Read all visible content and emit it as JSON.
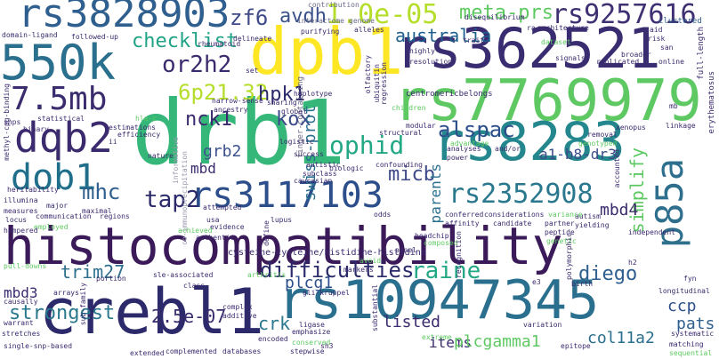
{
  "words": [
    {
      "text": "histocompatibility",
      "color": "#3b1a5a"
    },
    {
      "text": "drb1",
      "color": "#35b779"
    },
    {
      "text": "rs10947345",
      "color": "#2a6f8e"
    },
    {
      "text": "crebl1",
      "color": "#2c2a6b"
    },
    {
      "text": "rs3828903",
      "color": "#2f5f8e"
    },
    {
      "text": "rs362521",
      "color": "#3a2c70"
    },
    {
      "text": "rs7769979",
      "color": "#5ec962"
    },
    {
      "text": "rs8283",
      "color": "#24878e"
    },
    {
      "text": "dpb1",
      "color": "#fde725"
    },
    {
      "text": "550k",
      "color": "#2a6f8e"
    },
    {
      "text": "dqb2",
      "color": "#3b2a6e"
    },
    {
      "text": "dob1",
      "color": "#1f6f8b"
    },
    {
      "text": "7.5mb",
      "color": "#3b2c6e"
    },
    {
      "text": "rs3117103",
      "color": "#2c4f8b"
    },
    {
      "text": "rs2352908",
      "color": "#2a788e"
    },
    {
      "text": "p85a",
      "color": "#2f6f8e"
    },
    {
      "text": "1.0e-05",
      "color": "#b5de2b"
    },
    {
      "text": "meta-prs",
      "color": "#5ec962"
    },
    {
      "text": "rs9257616",
      "color": "#3f2f73"
    },
    {
      "text": "zf6",
      "color": "#3e4a89"
    },
    {
      "text": "avdh",
      "color": "#3b518b"
    },
    {
      "text": "or2h2",
      "color": "#3b2a6e"
    },
    {
      "text": "6p21.32",
      "color": "#b5de2b"
    },
    {
      "text": "hpk1",
      "color": "#2b2a6b"
    },
    {
      "text": "checklist",
      "color": "#20a386"
    },
    {
      "text": "australia",
      "color": "#1f5f8e"
    },
    {
      "text": "nck1",
      "color": "#3b2a6e"
    },
    {
      "text": "kox",
      "color": "#3b4a89"
    },
    {
      "text": "ophid",
      "color": "#22a884"
    },
    {
      "text": "alspac",
      "color": "#2c4f8b"
    },
    {
      "text": "a1-b8-dr3",
      "color": "#3b4a89"
    },
    {
      "text": "swiss-prot",
      "color": "#2a6f8e"
    },
    {
      "text": "micb",
      "color": "#3e4a89"
    },
    {
      "text": "mhc",
      "color": "#2f5f8e"
    },
    {
      "text": "grb2",
      "color": "#3b518b"
    },
    {
      "text": "tap2",
      "color": "#2b2a6b"
    },
    {
      "text": "mbd",
      "color": "#3b2a6e"
    },
    {
      "text": "parents",
      "color": "#2a6f8e"
    },
    {
      "text": "simplify",
      "color": "#5ec962"
    },
    {
      "text": "mbd4",
      "color": "#3b2a6e"
    },
    {
      "text": "raine",
      "color": "#22a884"
    },
    {
      "text": "diego",
      "color": "#2f5f8e"
    },
    {
      "text": "difficulties",
      "color": "#2b2a6b"
    },
    {
      "text": "plcg1",
      "color": "#2c4f8b"
    },
    {
      "text": "trim27",
      "color": "#2f6f8e"
    },
    {
      "text": "strongest",
      "color": "#2a788e"
    },
    {
      "text": "mbd3",
      "color": "#3b2a6e"
    },
    {
      "text": "2.5e-07",
      "color": "#3b2c6e"
    },
    {
      "text": "crk",
      "color": "#2a788e"
    },
    {
      "text": "items",
      "color": "#3b2a6e"
    },
    {
      "text": "listed",
      "color": "#3b2a6e"
    },
    {
      "text": "plcgamma1",
      "color": "#5ec962"
    },
    {
      "text": "col11a2",
      "color": "#2a6f8e"
    },
    {
      "text": "ccp",
      "color": "#2c4f8b"
    },
    {
      "text": "pats",
      "color": "#2f5f8e"
    },
    {
      "text": "australia",
      "color": "#1f5f8e"
    },
    {
      "text": "swiss-prot",
      "color": "#2a6f8e"
    },
    {
      "text": "informative",
      "color": "#9a9ab0"
    },
    {
      "text": "co-immunoprecipitation",
      "color": "#9a9ab0"
    },
    {
      "text": "cysteine-cysteine/histidine-histidine",
      "color": "#3b2a6e"
    },
    {
      "text": "finger-containing",
      "color": "#6a6a8a"
    },
    {
      "text": "centromericbelongs",
      "color": "#3b2a6e"
    },
    {
      "text": "interactome",
      "color": "#6a6a8a"
    },
    {
      "text": "genome",
      "color": "#6a6a8a"
    },
    {
      "text": "contribution",
      "color": "#6a6a8a"
    },
    {
      "text": "disequilibrium",
      "color": "#3b2a6e"
    },
    {
      "text": "domain-ligand",
      "color": "#3b2a6e"
    },
    {
      "text": "methyl-cpg-binding",
      "color": "#3b2a6e"
    },
    {
      "text": "followed-up",
      "color": "#3b2a6e"
    },
    {
      "text": "delineate",
      "color": "#3b2a6e"
    },
    {
      "text": "rheumatoid",
      "color": "#3b2a6e"
    },
    {
      "text": "purifying",
      "color": "#3b2a6e"
    },
    {
      "text": "alleles",
      "color": "#3b2a6e"
    },
    {
      "text": "resolution",
      "color": "#3b2a6e"
    },
    {
      "text": "highly",
      "color": "#3b2a6e"
    },
    {
      "text": "trait",
      "color": "#3b2a6e"
    },
    {
      "text": "architecture",
      "color": "#3b2a6e"
    },
    {
      "text": "clustered",
      "color": "#2f5f8e"
    },
    {
      "text": "full-length",
      "color": "#3b2a6e"
    },
    {
      "text": "erythematosus",
      "color": "#3b2a6e"
    },
    {
      "text": "dataset",
      "color": "#5ec962"
    },
    {
      "text": "replicated",
      "color": "#3b2a6e"
    },
    {
      "text": "online",
      "color": "#3b2a6e"
    },
    {
      "text": "risk",
      "color": "#3b2a6e"
    },
    {
      "text": "aid",
      "color": "#3b2a6e"
    },
    {
      "text": "san",
      "color": "#3b2a6e"
    },
    {
      "text": "broader",
      "color": "#3b2a6e"
    },
    {
      "text": "signals",
      "color": "#3b2a6e"
    },
    {
      "text": "ra",
      "color": "#3b2a6e"
    },
    {
      "text": "haplotype",
      "color": "#3b2a6e"
    },
    {
      "text": "set",
      "color": "#3b2a6e"
    },
    {
      "text": "olfactory",
      "color": "#3b2a6e"
    },
    {
      "text": "ubiquitin",
      "color": "#3b2a6e"
    },
    {
      "text": "regression",
      "color": "#3b2a6e"
    },
    {
      "text": "children",
      "color": "#5ec962"
    },
    {
      "text": "narrow-sense",
      "color": "#3b2a6e"
    },
    {
      "text": "sharing",
      "color": "#3b2a6e"
    },
    {
      "text": "ancestry",
      "color": "#3b2a6e"
    },
    {
      "text": "global",
      "color": "#3b2a6e"
    },
    {
      "text": "estimations",
      "color": "#3b2a6e"
    },
    {
      "text": "statistical",
      "color": "#3b2a6e"
    },
    {
      "text": "binary",
      "color": "#3b2a6e"
    },
    {
      "text": "snps",
      "color": "#3b2a6e"
    },
    {
      "text": "ii",
      "color": "#3b2a6e"
    },
    {
      "text": "hla-c",
      "color": "#5ec962"
    },
    {
      "text": "efficiency",
      "color": "#3b2a6e"
    },
    {
      "text": "linkage",
      "color": "#3b2a6e"
    },
    {
      "text": "xenopus",
      "color": "#3b2a6e"
    },
    {
      "text": "removal",
      "color": "#3b2a6e"
    },
    {
      "text": "mb",
      "color": "#3b2a6e"
    },
    {
      "text": "genotyped",
      "color": "#5ec962"
    },
    {
      "text": "advantage",
      "color": "#5ec962"
    },
    {
      "text": "modular",
      "color": "#3b2a6e"
    },
    {
      "text": "structural",
      "color": "#3b2a6e"
    },
    {
      "text": "logistic",
      "color": "#3b2a6e"
    },
    {
      "text": "nature",
      "color": "#3b2a6e"
    },
    {
      "text": "success",
      "color": "#3b2a6e"
    },
    {
      "text": "biologic",
      "color": "#3b2a6e"
    },
    {
      "text": "autistic",
      "color": "#3b2a6e"
    },
    {
      "text": "subclass",
      "color": "#3b2a6e"
    },
    {
      "text": "caucasian",
      "color": "#3b2a6e"
    },
    {
      "text": "confounding",
      "color": "#3b2a6e"
    },
    {
      "text": "analyses",
      "color": "#3b2a6e"
    },
    {
      "text": "power",
      "color": "#3b2a6e"
    },
    {
      "text": "and/or",
      "color": "#3b2a6e"
    },
    {
      "text": "accounted",
      "color": "#3b2a6e"
    },
    {
      "text": "autism",
      "color": "#3b2a6e"
    },
    {
      "text": "yielding",
      "color": "#3b2a6e"
    },
    {
      "text": "independent",
      "color": "#3b2a6e"
    },
    {
      "text": "heritability",
      "color": "#3b2a6e"
    },
    {
      "text": "illumina",
      "color": "#3b2a6e"
    },
    {
      "text": "major",
      "color": "#3b2a6e"
    },
    {
      "text": "measures",
      "color": "#3b2a6e"
    },
    {
      "text": "communication",
      "color": "#3b2a6e"
    },
    {
      "text": "maximal",
      "color": "#3b2a6e"
    },
    {
      "text": "locus",
      "color": "#3b2a6e"
    },
    {
      "text": "employed",
      "color": "#5ec962"
    },
    {
      "text": "hampered",
      "color": "#3b2a6e"
    },
    {
      "text": "regions",
      "color": "#3b2a6e"
    },
    {
      "text": "attempted",
      "color": "#3b2a6e"
    },
    {
      "text": "usa",
      "color": "#3b2a6e"
    },
    {
      "text": "evidence",
      "color": "#3b2a6e"
    },
    {
      "text": "lupus",
      "color": "#3b2a6e"
    },
    {
      "text": "odds",
      "color": "#3b2a6e"
    },
    {
      "text": "conferred",
      "color": "#3b2a6e"
    },
    {
      "text": "considerations",
      "color": "#3b2a6e"
    },
    {
      "text": "variance",
      "color": "#5ec962"
    },
    {
      "text": "achieved",
      "color": "#5ec962"
    },
    {
      "text": "authentic",
      "color": "#3b2a6e"
    },
    {
      "text": "affinity",
      "color": "#3b2a6e"
    },
    {
      "text": "candidate",
      "color": "#3b2a6e"
    },
    {
      "text": "partner",
      "color": "#3b2a6e"
    },
    {
      "text": "peptide",
      "color": "#3b2a6e"
    },
    {
      "text": "headchip",
      "color": "#3b2a6e"
    },
    {
      "text": "genetic",
      "color": "#5ec962"
    },
    {
      "text": "polymorphic",
      "color": "#3b2a6e"
    },
    {
      "text": "composed",
      "color": "#5ec962"
    },
    {
      "text": "panel",
      "color": "#3b2a6e"
    },
    {
      "text": "recognition",
      "color": "#3b2a6e"
    },
    {
      "text": "markers",
      "color": "#3b2a6e"
    },
    {
      "text": "h2",
      "color": "#3b2a6e"
    },
    {
      "text": "birth",
      "color": "#3b2a6e"
    },
    {
      "text": "fyn",
      "color": "#3b2a6e"
    },
    {
      "text": "longitudinal",
      "color": "#3b2a6e"
    },
    {
      "text": "systematic",
      "color": "#3b2a6e"
    },
    {
      "text": "matching",
      "color": "#3b2a6e"
    },
    {
      "text": "sequential",
      "color": "#5ec962"
    },
    {
      "text": "epitope",
      "color": "#3b2a6e"
    },
    {
      "text": "variation",
      "color": "#3b2a6e"
    },
    {
      "text": "extreme",
      "color": "#5ec962"
    },
    {
      "text": "substantial",
      "color": "#3b2a6e"
    },
    {
      "text": "sh3",
      "color": "#3b2a6e"
    },
    {
      "text": "stepwise",
      "color": "#3b2a6e"
    },
    {
      "text": "conserved",
      "color": "#5ec962"
    },
    {
      "text": "ligase",
      "color": "#3b2a6e"
    },
    {
      "text": "emphasize",
      "color": "#3b2a6e"
    },
    {
      "text": "encoded",
      "color": "#3b2a6e"
    },
    {
      "text": "complemented",
      "color": "#3b2a6e"
    },
    {
      "text": "databases",
      "color": "#3b2a6e"
    },
    {
      "text": "extended",
      "color": "#3b2a6e"
    },
    {
      "text": "complex",
      "color": "#3b2a6e"
    },
    {
      "text": "additive",
      "color": "#3b2a6e"
    },
    {
      "text": "class",
      "color": "#3b2a6e"
    },
    {
      "text": "gli-kruppel",
      "color": "#3b2a6e"
    },
    {
      "text": "sle-associated",
      "color": "#3b2a6e"
    },
    {
      "text": "arthritis",
      "color": "#5ec962"
    },
    {
      "text": "pull-downs",
      "color": "#5ec962"
    },
    {
      "text": "portion",
      "color": "#3b2a6e"
    },
    {
      "text": "arrays",
      "color": "#3b2a6e"
    },
    {
      "text": "causally",
      "color": "#3b2a6e"
    },
    {
      "text": "sub-family",
      "color": "#3b2a6e"
    },
    {
      "text": "warrant",
      "color": "#3b2a6e"
    },
    {
      "text": "stretches",
      "color": "#3b2a6e"
    },
    {
      "text": "single-snp-based",
      "color": "#3b2a6e"
    },
    {
      "text": "define",
      "color": "#3b2a6e"
    },
    {
      "text": "avoid",
      "color": "#5ec962"
    },
    {
      "text": "e3",
      "color": "#3b2a6e"
    }
  ]
}
